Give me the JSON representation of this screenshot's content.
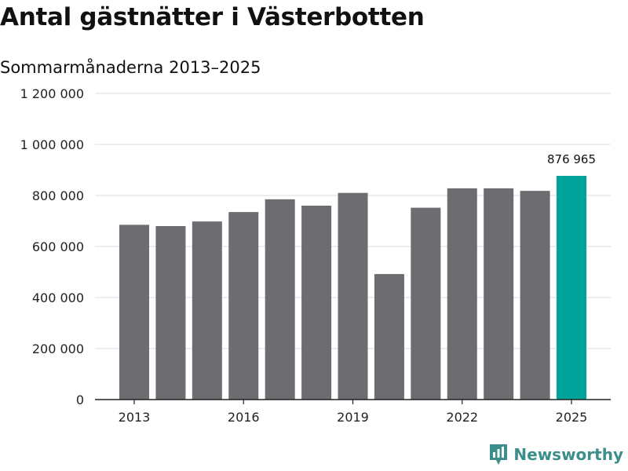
{
  "title": "Antal gästnätter i Västerbotten",
  "subtitle": "Sommarmånaderna 2013–2025",
  "brand": {
    "name": "Newsworthy",
    "icon": "newsworthy-logo-icon",
    "color": "#3a8f8a"
  },
  "colors": {
    "bar": "#6d6c71",
    "highlight": "#00a399",
    "grid": "#dcdcdc",
    "axis": "#222222"
  },
  "chart_data": {
    "type": "bar",
    "title": "Antal gästnätter i Västerbotten",
    "subtitle": "Sommarmånaderna 2013–2025",
    "xlabel": "",
    "ylabel": "",
    "categories": [
      "2013",
      "2014",
      "2015",
      "2016",
      "2017",
      "2018",
      "2019",
      "2020",
      "2021",
      "2022",
      "2023",
      "2024",
      "2025"
    ],
    "values": [
      685000,
      680000,
      698000,
      735000,
      785000,
      760000,
      810000,
      492000,
      752000,
      828000,
      828000,
      818000,
      876965
    ],
    "highlight_index": 12,
    "data_labels": [
      {
        "index": 12,
        "text": "876 965"
      }
    ],
    "x_tick_labels": [
      "2013",
      "2016",
      "2019",
      "2022",
      "2025"
    ],
    "y_ticks": [
      0,
      200000,
      400000,
      600000,
      800000,
      1000000,
      1200000
    ],
    "y_tick_labels": [
      "0",
      "200 000",
      "400 000",
      "600 000",
      "800 000",
      "1 000 000",
      "1 200 000"
    ],
    "ylim": [
      0,
      1200000
    ],
    "grid": true,
    "legend": "none"
  }
}
